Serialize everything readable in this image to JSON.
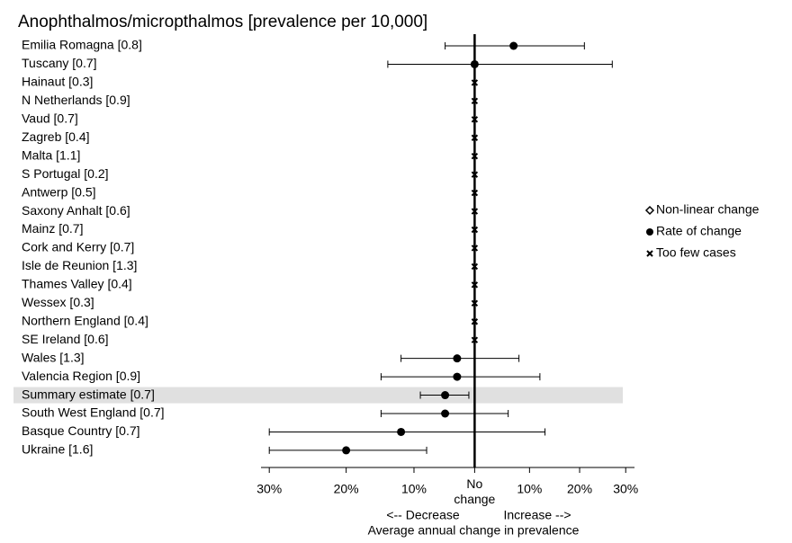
{
  "chart_data": {
    "type": "forest",
    "title": "Anophthalmos/micropthalmos [prevalence per 10,000]",
    "categories": [
      "Emilia Romagna [0.8]",
      "Tuscany [0.7]",
      "Hainaut [0.3]",
      "N Netherlands [0.9]",
      "Vaud [0.7]",
      "Zagreb [0.4]",
      "Malta [1.1]",
      "S Portugal [0.2]",
      "Antwerp [0.5]",
      "Saxony Anhalt [0.6]",
      "Mainz [0.7]",
      "Cork and Kerry [0.7]",
      "Isle de Reunion [1.3]",
      "Thames Valley [0.4]",
      "Wessex [0.3]",
      "Northern England [0.4]",
      "SE Ireland [0.6]",
      "Wales [1.3]",
      "Valencia Region [0.9]",
      "Summary estimate [0.7]",
      "South West England [0.7]",
      "Basque Country [0.7]",
      "Ukraine [1.6]"
    ],
    "values": [
      1.07,
      1.0,
      null,
      null,
      null,
      null,
      null,
      null,
      null,
      null,
      null,
      null,
      null,
      null,
      null,
      null,
      null,
      0.97,
      0.97,
      0.95,
      0.95,
      0.88,
      0.8
    ],
    "ci_low": [
      0.95,
      0.86,
      null,
      null,
      null,
      null,
      null,
      null,
      null,
      null,
      null,
      null,
      null,
      null,
      null,
      null,
      null,
      0.88,
      0.85,
      0.91,
      0.85,
      0.7,
      0.7
    ],
    "ci_high": [
      1.21,
      1.27,
      null,
      null,
      null,
      null,
      null,
      null,
      null,
      null,
      null,
      null,
      null,
      null,
      null,
      null,
      null,
      1.08,
      1.12,
      0.99,
      1.06,
      1.13,
      0.92
    ],
    "highlight_index": 19,
    "xscale": "log",
    "xlim": [
      0.69,
      1.32
    ],
    "xticks": [
      {
        "value": 0.7,
        "label": "30%"
      },
      {
        "value": 0.8,
        "label": "20%"
      },
      {
        "value": 0.9,
        "label": "10%"
      },
      {
        "value": 1,
        "label": "No change"
      },
      {
        "value": 1.1,
        "label": "10%"
      },
      {
        "value": 1.2,
        "label": "20%"
      },
      {
        "value": 1.3,
        "label": "30%"
      }
    ],
    "x_direction_labels": [
      "<-- Decrease",
      "Increase -->"
    ],
    "xlabel": "Average annual change in prevalence",
    "legend": {
      "position": "right",
      "entries": [
        "Non-linear change",
        "Rate of change",
        "Too few cases"
      ]
    }
  }
}
